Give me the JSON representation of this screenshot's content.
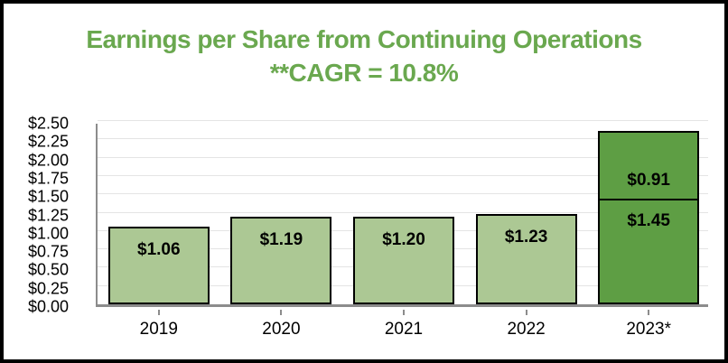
{
  "chart_data": {
    "type": "bar",
    "stacked": true,
    "title": "Earnings per Share from Continuing Operations",
    "subtitle": "**CAGR = 10.8%",
    "categories": [
      "2019",
      "2020",
      "2021",
      "2022",
      "2023*"
    ],
    "series": [
      {
        "name": "eps-base",
        "values": [
          1.06,
          1.19,
          1.2,
          1.23,
          1.45
        ]
      },
      {
        "name": "eps-additional",
        "values": [
          0,
          0,
          0,
          0,
          0.91
        ]
      }
    ],
    "bars": [
      {
        "category": "2019",
        "segments": [
          {
            "value": 1.06,
            "label": "$1.06",
            "shade": "light"
          }
        ]
      },
      {
        "category": "2020",
        "segments": [
          {
            "value": 1.19,
            "label": "$1.19",
            "shade": "light"
          }
        ]
      },
      {
        "category": "2021",
        "segments": [
          {
            "value": 1.2,
            "label": "$1.20",
            "shade": "light"
          }
        ]
      },
      {
        "category": "2022",
        "segments": [
          {
            "value": 1.23,
            "label": "$1.23",
            "shade": "light"
          }
        ]
      },
      {
        "category": "2023*",
        "segments": [
          {
            "value": 1.45,
            "label": "$1.45",
            "shade": "dark"
          },
          {
            "value": 0.91,
            "label": "$0.91",
            "shade": "dark"
          }
        ]
      }
    ],
    "ylim": [
      0,
      2.5
    ],
    "ytick_step": 0.25,
    "ytick_labels": [
      "$2.50",
      "$2.25",
      "$2.00",
      "$1.75",
      "$1.50",
      "$1.25",
      "$1.00",
      "$0.75",
      "$0.50",
      "$0.25",
      "$0.00"
    ],
    "grid": true,
    "legend": false
  },
  "colors": {
    "title_green": "#6AA84F",
    "bar_light": "#ACC894",
    "bar_dark": "#5E9E44",
    "bar_border": "#000000",
    "axis_gray": "#8C8C8C",
    "grid_gray": "#E4E4E4",
    "label_black": "#000000",
    "frame_black": "#000000",
    "background": "#FFFFFF"
  }
}
